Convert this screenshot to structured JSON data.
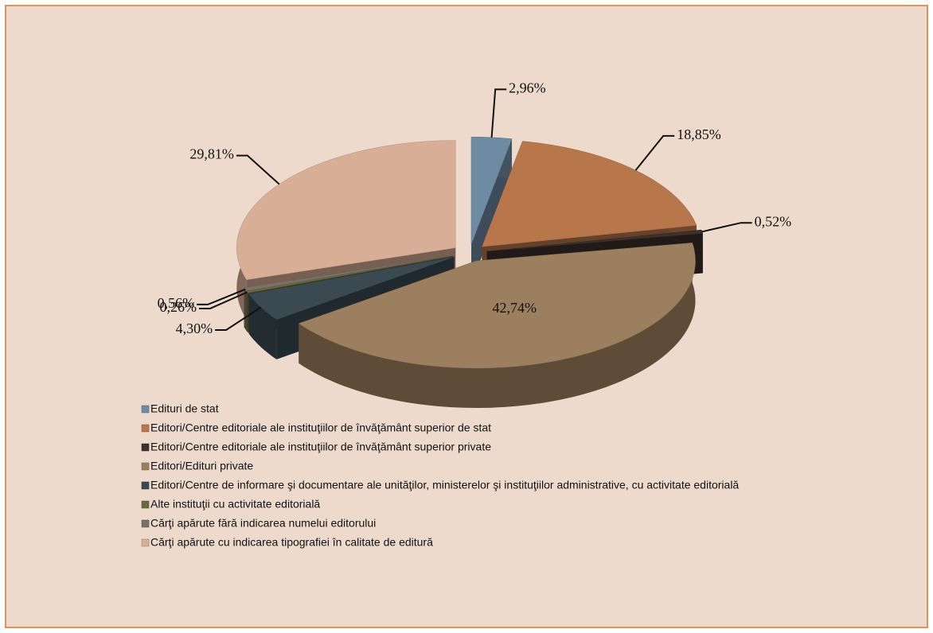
{
  "chart_data": {
    "type": "pie",
    "categories": [
      "Edituri de stat",
      "Editori/Centre editoriale  ale instituţiilor de învăţământ superior de stat",
      "Editori/Centre editoriale ale instituţiilor de învăţământ superior private",
      "Editori/Edituri private",
      "Editori/Centre de informare şi documentare ale unităţilor, ministerelor şi instituţiilor administrative, cu activitate editorială",
      "Alte instituţii cu activitate editorială",
      "Cărţi apărute fără indicarea numelui editorului",
      "Cărţi apărute cu indicarea tipografiei în calitate de editură"
    ],
    "values": [
      2.96,
      18.85,
      0.52,
      42.74,
      4.3,
      0.26,
      0.56,
      29.81
    ],
    "value_labels": [
      "2,96%",
      "18,85%",
      "0,52%",
      "42,74%",
      "4,30%",
      "0,26%",
      "0,56%",
      "29,81%"
    ],
    "colors": [
      "#6f8aa3",
      "#b8764b",
      "#3e302b",
      "#9c7f5e",
      "#3b4a52",
      "#6b6a3e",
      "#7a7068",
      "#d8ae96"
    ],
    "legend": "bottom"
  }
}
